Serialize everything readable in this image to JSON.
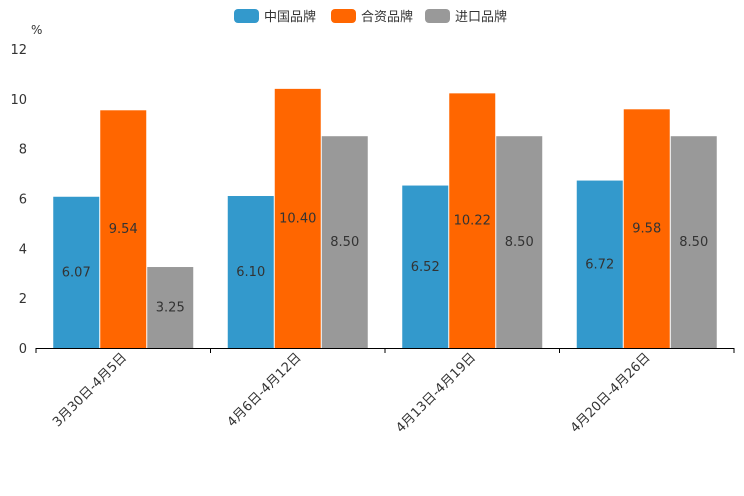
{
  "chart_data": {
    "type": "bar",
    "title": "",
    "xlabel": "",
    "ylabel": "%",
    "ylim": [
      0,
      12
    ],
    "yticks": [
      0,
      2,
      4,
      6,
      8,
      10,
      12
    ],
    "categories": [
      "3月30日-4月5日",
      "4月6日-4月12日",
      "4月13日-4月19日",
      "4月20日-4月26日"
    ],
    "series": [
      {
        "name": "中国品牌",
        "color": "#3399cc",
        "values": [
          6.07,
          6.1,
          6.52,
          6.72
        ],
        "labels": [
          "6.07",
          "6.10",
          "6.52",
          "6.72"
        ]
      },
      {
        "name": "合资品牌",
        "color": "#ff6600",
        "values": [
          9.54,
          10.4,
          10.22,
          9.58
        ],
        "labels": [
          "9.54",
          "10.40",
          "10.22",
          "9.58"
        ]
      },
      {
        "name": "进口品牌",
        "color": "#999999",
        "values": [
          3.25,
          8.5,
          8.5,
          8.5
        ],
        "labels": [
          "3.25",
          "8.50",
          "8.50",
          "8.50"
        ]
      }
    ],
    "legend_position": "top-center",
    "grid": false
  }
}
